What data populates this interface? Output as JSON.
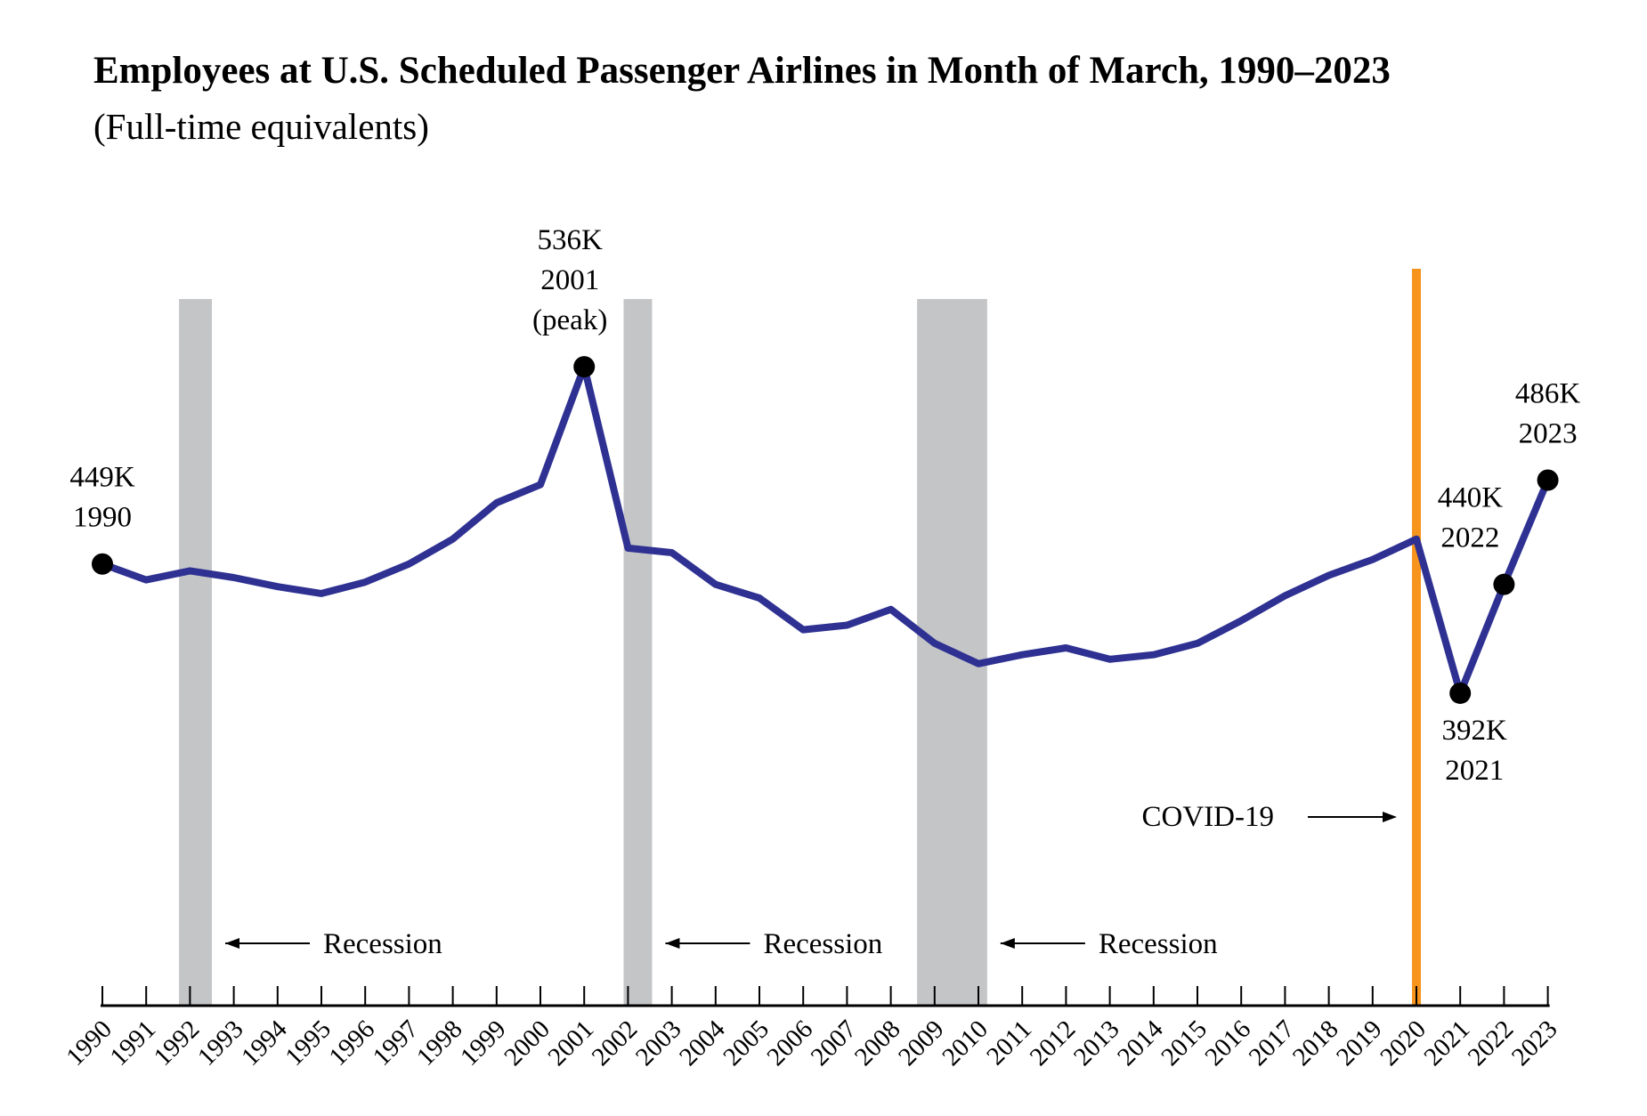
{
  "chart_data": {
    "type": "line",
    "title": "Employees at U.S. Scheduled Passenger Airlines in Month of March, 1990–2023",
    "subtitle": "(Full-time equivalents)",
    "xlabel": "",
    "ylabel": "",
    "categories": [
      "1990",
      "1991",
      "1992",
      "1993",
      "1994",
      "1995",
      "1996",
      "1997",
      "1998",
      "1999",
      "2000",
      "2001",
      "2002",
      "2003",
      "2004",
      "2005",
      "2006",
      "2007",
      "2008",
      "2009",
      "2010",
      "2011",
      "2012",
      "2013",
      "2014",
      "2015",
      "2016",
      "2017",
      "2018",
      "2019",
      "2020",
      "2021",
      "2022",
      "2023"
    ],
    "series": [
      {
        "name": "",
        "color": "#2e3192",
        "values": [
          449,
          442,
          446,
          443,
          439,
          436,
          441,
          449,
          460,
          476,
          484,
          536,
          456,
          454,
          440,
          434,
          420,
          422,
          429,
          414,
          405,
          409,
          412,
          407,
          409,
          414,
          424,
          435,
          444,
          451,
          460,
          392,
          440,
          486
        ]
      }
    ],
    "ylim": [
      255,
      580
    ],
    "grid": false,
    "recessions": [
      {
        "label": "Recession",
        "start": 1991.75,
        "end": 1992.5
      },
      {
        "label": "Recession",
        "start": 2001.9,
        "end": 2002.55
      },
      {
        "label": "Recession",
        "start": 2008.6,
        "end": 2010.2
      }
    ],
    "covid_marker": {
      "label": "COVID-19",
      "year": 2020,
      "color": "#f7941d"
    },
    "annotations": [
      {
        "year": "1990",
        "value_label": "449K",
        "year_label": "1990"
      },
      {
        "year": "2001",
        "value_label": "536K",
        "year_label": "2001",
        "note": "(peak)"
      },
      {
        "year": "2021",
        "value_label": "392K",
        "year_label": "2021"
      },
      {
        "year": "2022",
        "value_label": "440K",
        "year_label": "2022"
      },
      {
        "year": "2023",
        "value_label": "486K",
        "year_label": "2023"
      }
    ]
  }
}
